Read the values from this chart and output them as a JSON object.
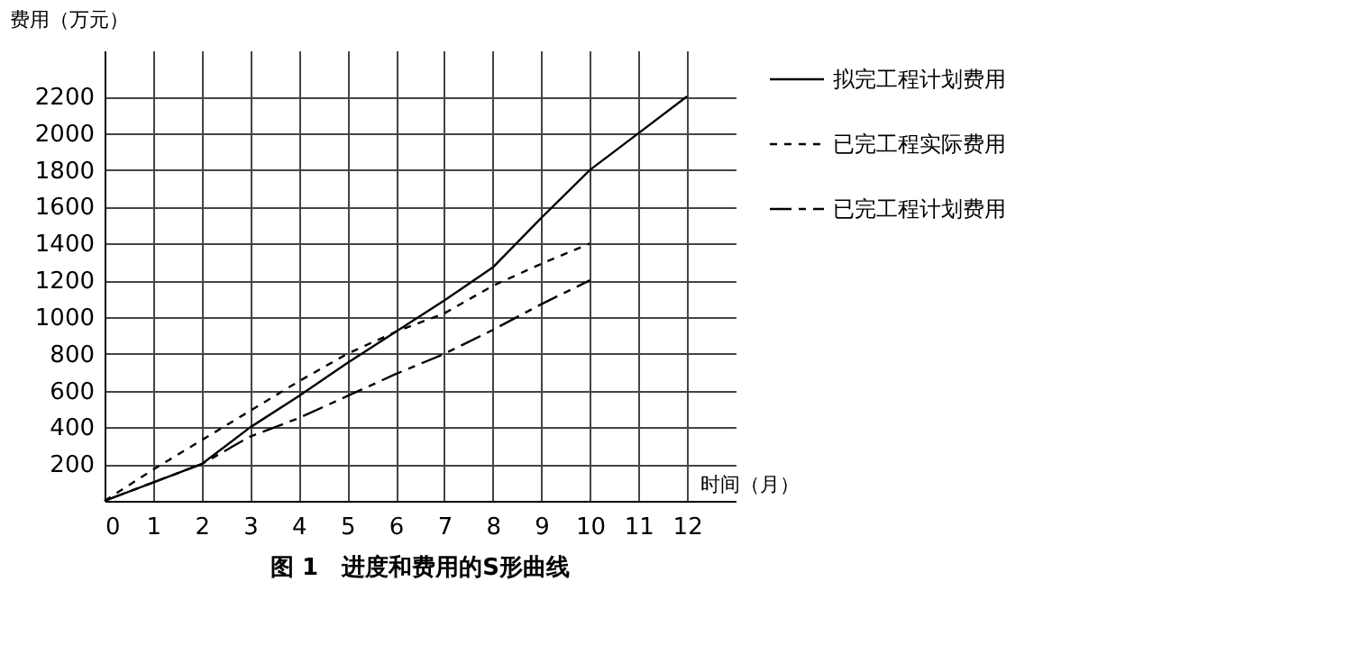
{
  "chart_data": {
    "type": "line",
    "title": "图 1　进度和费用的S形曲线",
    "xlabel": "时间（月）",
    "ylabel": "费用（万元）",
    "xlim": [
      0,
      13
    ],
    "ylim": [
      0,
      2450
    ],
    "xticks": [
      0,
      1,
      2,
      3,
      4,
      5,
      6,
      7,
      8,
      9,
      10,
      11,
      12
    ],
    "yticks": [
      {
        "value": 0,
        "label": null
      },
      200,
      400,
      600,
      800,
      1000,
      1200,
      1400,
      1600,
      1800,
      2000,
      2200
    ],
    "grid": true,
    "legend": "right",
    "marker": "none",
    "series": [
      {
        "name": "拟完工程计划费用",
        "color": "#000000",
        "line_style": "solid",
        "x": [
          0,
          1,
          2,
          3,
          4,
          5,
          6,
          7,
          8,
          9,
          10,
          11,
          12
        ],
        "values": [
          0,
          100,
          200,
          400,
          570,
          750,
          920,
          1090,
          1270,
          1540,
          1800,
          2000,
          2200
        ]
      },
      {
        "name": "已完工程实际费用",
        "color": "#000000",
        "line_style": "dotted",
        "x": [
          0,
          1,
          2,
          3,
          4,
          5,
          6,
          7,
          8,
          9,
          10
        ],
        "values": [
          0,
          170,
          330,
          490,
          650,
          800,
          920,
          1020,
          1170,
          1290,
          1400
        ]
      },
      {
        "name": "已完工程计划费用",
        "color": "#000000",
        "line_style": "dashed",
        "x": [
          0,
          1,
          2,
          3,
          4,
          5,
          6,
          7,
          8,
          9,
          10
        ],
        "values": [
          0,
          100,
          200,
          350,
          450,
          570,
          690,
          800,
          930,
          1070,
          1200
        ]
      }
    ]
  }
}
